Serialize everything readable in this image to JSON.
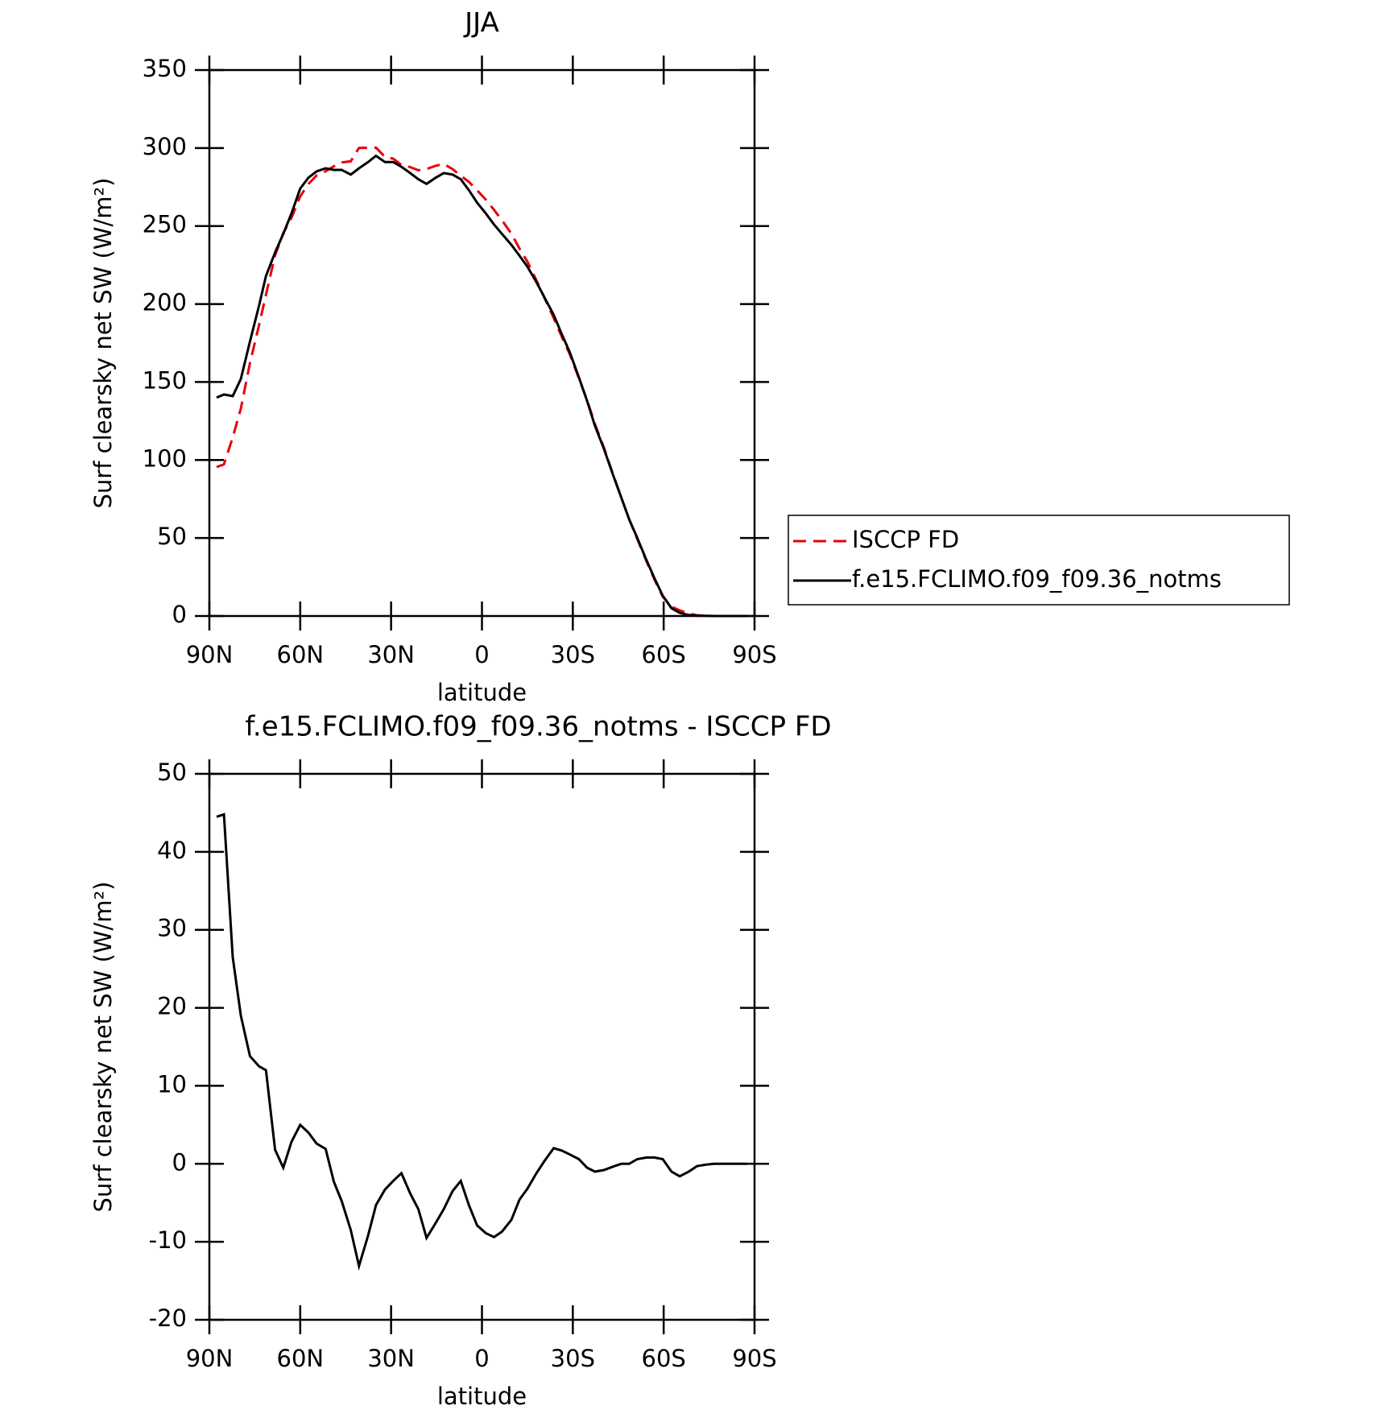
{
  "chart_data": [
    {
      "type": "line",
      "title": "JJA",
      "x_label": "latitude",
      "y_label": "Surf clearsky net SW (W/m²)",
      "x": [
        87.6,
        85.2,
        82.3,
        79.6,
        76.6,
        73.6,
        71.3,
        68.3,
        65.6,
        62.9,
        60,
        57.3,
        54.6,
        51.6,
        48.9,
        46.3,
        43.3,
        40.6,
        37.6,
        35,
        32,
        29.3,
        26.6,
        23.7,
        21,
        18.3,
        15.3,
        12.6,
        9.7,
        7,
        4.3,
        1.6,
        -1.3,
        -4,
        -6.6,
        -9.7,
        -12.4,
        -15,
        -18,
        -20.7,
        -23.7,
        -26.3,
        -29,
        -32,
        -34.7,
        -37.3,
        -40.3,
        -43,
        -46,
        -48.6,
        -51.3,
        -54.3,
        -57,
        -59.7,
        -62.6,
        -65.3,
        -68.3,
        -71,
        -74,
        -76.6,
        -79.6,
        -82.3,
        -85,
        -87.6
      ],
      "series": [
        {
          "name": "ISCCP FD",
          "color": "#e8000b",
          "dash": true,
          "values": [
            95.5,
            97.2,
            114.5,
            133,
            162.2,
            186.5,
            206,
            231.2,
            245.5,
            255.2,
            269,
            277,
            282.4,
            285.1,
            288.3,
            290.8,
            291.5,
            300.1,
            300.2,
            300.3,
            294.3,
            293.2,
            289.2,
            287.8,
            285.8,
            286.5,
            288.6,
            289.8,
            286.5,
            282.2,
            278.3,
            272.9,
            266.9,
            260.4,
            253.7,
            245.2,
            235.6,
            227.2,
            215.2,
            203.6,
            191,
            179.3,
            167.8,
            152.4,
            138.5,
            123,
            107.8,
            92.4,
            76,
            62,
            49.4,
            35.2,
            23.2,
            12.4,
            6,
            3.6,
            1.6,
            0.5,
            0.2,
            0,
            0,
            0,
            0,
            0
          ]
        },
        {
          "name": "f.e15.FCLIMO.f09_f09.36_notms",
          "color": "#000000",
          "dash": false,
          "values": [
            140,
            142,
            141,
            152,
            176,
            199,
            218,
            233,
            245,
            258,
            274,
            281,
            285,
            287,
            286,
            286,
            283,
            287,
            291,
            295,
            291,
            291,
            288,
            284,
            280,
            277,
            281,
            284,
            283,
            280,
            273,
            265,
            258,
            251,
            245,
            238,
            231,
            224,
            214,
            204,
            193,
            181,
            169,
            153,
            138,
            122,
            107,
            92,
            76,
            62,
            50,
            36,
            24,
            13,
            5,
            2,
            0.6,
            0.2,
            0.1,
            0,
            0,
            0,
            0,
            0
          ]
        }
      ],
      "xlim": [
        90,
        -90
      ],
      "xticks": [
        {
          "value": 90,
          "label": "90N"
        },
        {
          "value": 60,
          "label": "60N"
        },
        {
          "value": 30,
          "label": "30N"
        },
        0,
        {
          "value": -30,
          "label": "30S"
        },
        {
          "value": -60,
          "label": "60S"
        },
        {
          "value": -90,
          "label": "90S"
        }
      ],
      "ylim": [
        0,
        350
      ],
      "yticks": [
        0,
        50,
        100,
        150,
        200,
        250,
        300,
        350
      ],
      "legend": "right"
    },
    {
      "type": "line",
      "title": "f.e15.FCLIMO.f09_f09.36_notms - ISCCP FD",
      "x_label": "latitude",
      "y_label": "Surf clearsky net SW (W/m²)",
      "x": [
        87.6,
        85.2,
        82.3,
        79.6,
        76.6,
        73.6,
        71.3,
        68.3,
        65.6,
        62.9,
        60,
        57.3,
        54.6,
        51.6,
        48.9,
        46.3,
        43.3,
        40.6,
        37.6,
        35,
        32,
        29.3,
        26.6,
        23.7,
        21,
        18.3,
        15.3,
        12.6,
        9.7,
        7,
        4.3,
        1.6,
        -1.3,
        -4,
        -6.6,
        -9.7,
        -12.4,
        -15,
        -18,
        -20.7,
        -23.7,
        -26.3,
        -29,
        -32,
        -34.7,
        -37.3,
        -40.3,
        -43,
        -46,
        -48.6,
        -51.3,
        -54.3,
        -57,
        -59.7,
        -62.6,
        -65.3,
        -68.3,
        -71,
        -74,
        -76.6,
        -79.6,
        -82.3,
        -85,
        -87.6
      ],
      "color": "#000000",
      "values": [
        44.5,
        44.8,
        26.5,
        19,
        13.8,
        12.5,
        12,
        1.8,
        -0.5,
        2.8,
        5,
        4,
        2.6,
        1.9,
        -2.3,
        -4.8,
        -8.5,
        -13.1,
        -9.2,
        -5.3,
        -3.3,
        -2.2,
        -1.2,
        -3.8,
        -5.8,
        -9.5,
        -7.6,
        -5.8,
        -3.5,
        -2.2,
        -5.3,
        -7.9,
        -8.9,
        -9.4,
        -8.7,
        -7.2,
        -4.6,
        -3.2,
        -1.2,
        0.4,
        2,
        1.7,
        1.2,
        0.6,
        -0.5,
        -1,
        -0.8,
        -0.4,
        0,
        0,
        0.6,
        0.8,
        0.8,
        0.6,
        -1,
        -1.6,
        -1,
        -0.3,
        -0.1,
        0,
        0,
        0,
        0,
        0
      ],
      "xlim": [
        90,
        -90
      ],
      "xticks": [
        {
          "value": 90,
          "label": "90N"
        },
        {
          "value": 60,
          "label": "60N"
        },
        {
          "value": 30,
          "label": "30N"
        },
        0,
        {
          "value": -30,
          "label": "30S"
        },
        {
          "value": -60,
          "label": "60S"
        },
        {
          "value": -90,
          "label": "90S"
        }
      ],
      "ylim": [
        -20,
        50
      ],
      "yticks": [
        -20,
        -10,
        0,
        10,
        20,
        30,
        40,
        50
      ]
    }
  ]
}
